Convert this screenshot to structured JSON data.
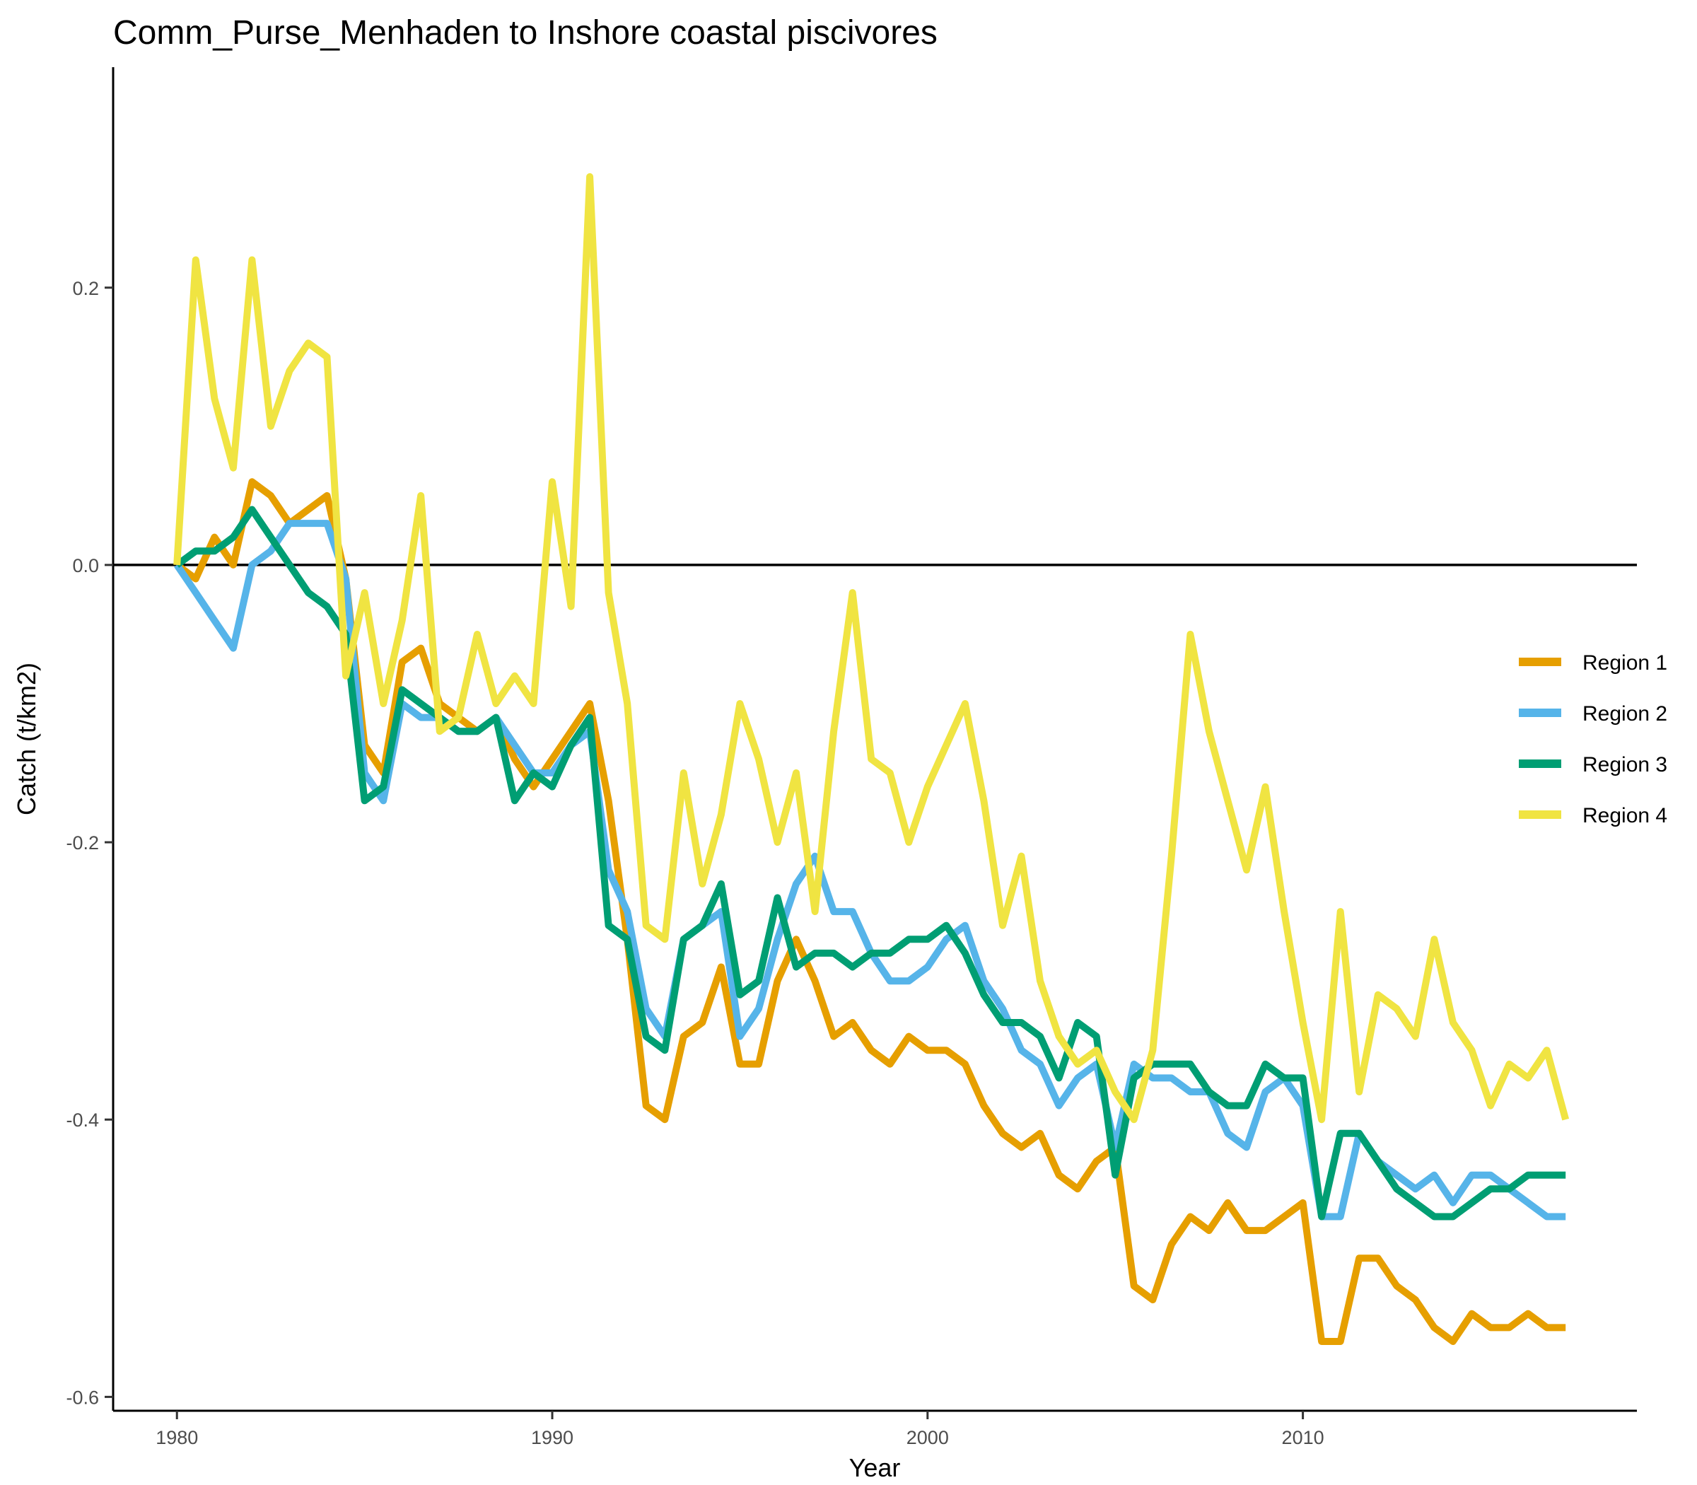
{
  "chart_data": {
    "type": "line",
    "title": "Comm_Purse_Menhaden to Inshore coastal piscivores",
    "xlabel": "Year",
    "ylabel": "Catch (t/km2)",
    "xlim": [
      1978.3,
      2018.9
    ],
    "ylim": [
      -0.61,
      0.359
    ],
    "xticks": [
      1980,
      1990,
      2000,
      2010
    ],
    "xtick_labels": [
      "1980",
      "1990",
      "2000",
      "2010"
    ],
    "yticks": [
      -0.6,
      -0.4,
      -0.2,
      0.0,
      0.2
    ],
    "ytick_labels": [
      "-0.6",
      "-0.4",
      "-0.2",
      "0.0",
      "0.2"
    ],
    "reference_line_y": 0,
    "grid": false,
    "legend": "right",
    "x": [
      1980.0,
      1980.5,
      1981.0,
      1981.5,
      1982.0,
      1982.5,
      1983.0,
      1983.5,
      1984.0,
      1984.5,
      1985.0,
      1985.5,
      1986.0,
      1986.5,
      1987.0,
      1987.5,
      1988.0,
      1988.5,
      1989.0,
      1989.5,
      1990.0,
      1990.5,
      1991.0,
      1991.5,
      1992.0,
      1992.5,
      1993.0,
      1993.5,
      1994.0,
      1994.5,
      1995.0,
      1995.5,
      1996.0,
      1996.5,
      1997.0,
      1997.5,
      1998.0,
      1998.5,
      1999.0,
      1999.5,
      2000.0,
      2000.5,
      2001.0,
      2001.5,
      2002.0,
      2002.5,
      2003.0,
      2003.5,
      2004.0,
      2004.5,
      2005.0,
      2005.5,
      2006.0,
      2006.5,
      2007.0,
      2007.5,
      2008.0,
      2008.5,
      2009.0,
      2009.5,
      2010.0,
      2010.5,
      2011.0,
      2011.5,
      2012.0,
      2012.5,
      2013.0,
      2013.5,
      2014.0,
      2014.5,
      2015.0,
      2015.5,
      2016.0,
      2016.5,
      2017.0
    ],
    "series": [
      {
        "name": "Region 1",
        "color": "#E69F00",
        "values": [
          0.0,
          -0.01,
          0.02,
          0.0,
          0.06,
          0.05,
          0.03,
          0.04,
          0.05,
          -0.01,
          -0.13,
          -0.15,
          -0.07,
          -0.06,
          -0.1,
          -0.11,
          -0.12,
          -0.11,
          -0.14,
          -0.16,
          -0.14,
          -0.12,
          -0.1,
          -0.17,
          -0.27,
          -0.39,
          -0.4,
          -0.34,
          -0.33,
          -0.29,
          -0.36,
          -0.36,
          -0.3,
          -0.27,
          -0.3,
          -0.34,
          -0.33,
          -0.35,
          -0.36,
          -0.34,
          -0.35,
          -0.35,
          -0.36,
          -0.39,
          -0.41,
          -0.42,
          -0.41,
          -0.44,
          -0.45,
          -0.43,
          -0.42,
          -0.52,
          -0.53,
          -0.49,
          -0.47,
          -0.48,
          -0.46,
          -0.48,
          -0.48,
          -0.47,
          -0.46,
          -0.56,
          -0.56,
          -0.5,
          -0.5,
          -0.52,
          -0.53,
          -0.55,
          -0.56,
          -0.54,
          -0.55,
          -0.55,
          -0.54,
          -0.55,
          -0.55
        ]
      },
      {
        "name": "Region 2",
        "color": "#56B4E9",
        "values": [
          0.0,
          -0.02,
          -0.04,
          -0.06,
          0.0,
          0.01,
          0.03,
          0.03,
          0.03,
          -0.01,
          -0.15,
          -0.17,
          -0.1,
          -0.11,
          -0.11,
          -0.12,
          -0.12,
          -0.11,
          -0.13,
          -0.15,
          -0.15,
          -0.13,
          -0.12,
          -0.22,
          -0.25,
          -0.32,
          -0.34,
          -0.27,
          -0.26,
          -0.25,
          -0.34,
          -0.32,
          -0.27,
          -0.23,
          -0.21,
          -0.25,
          -0.25,
          -0.28,
          -0.3,
          -0.3,
          -0.29,
          -0.27,
          -0.26,
          -0.3,
          -0.32,
          -0.35,
          -0.36,
          -0.39,
          -0.37,
          -0.36,
          -0.42,
          -0.36,
          -0.37,
          -0.37,
          -0.38,
          -0.38,
          -0.41,
          -0.42,
          -0.38,
          -0.37,
          -0.39,
          -0.47,
          -0.47,
          -0.41,
          -0.43,
          -0.44,
          -0.45,
          -0.44,
          -0.46,
          -0.44,
          -0.44,
          -0.45,
          -0.46,
          -0.47,
          -0.47
        ]
      },
      {
        "name": "Region 3",
        "color": "#009E73",
        "values": [
          0.0,
          0.01,
          0.01,
          0.02,
          0.04,
          0.02,
          0.0,
          -0.02,
          -0.03,
          -0.05,
          -0.17,
          -0.16,
          -0.09,
          -0.1,
          -0.11,
          -0.12,
          -0.12,
          -0.11,
          -0.17,
          -0.15,
          -0.16,
          -0.13,
          -0.11,
          -0.26,
          -0.27,
          -0.34,
          -0.35,
          -0.27,
          -0.26,
          -0.23,
          -0.31,
          -0.3,
          -0.24,
          -0.29,
          -0.28,
          -0.28,
          -0.29,
          -0.28,
          -0.28,
          -0.27,
          -0.27,
          -0.26,
          -0.28,
          -0.31,
          -0.33,
          -0.33,
          -0.34,
          -0.37,
          -0.33,
          -0.34,
          -0.44,
          -0.37,
          -0.36,
          -0.36,
          -0.36,
          -0.38,
          -0.39,
          -0.39,
          -0.36,
          -0.37,
          -0.37,
          -0.47,
          -0.41,
          -0.41,
          -0.43,
          -0.45,
          -0.46,
          -0.47,
          -0.47,
          -0.46,
          -0.45,
          -0.45,
          -0.44,
          -0.44,
          -0.44
        ]
      },
      {
        "name": "Region 4",
        "color": "#F0E442",
        "values": [
          0.0,
          0.22,
          0.12,
          0.07,
          0.22,
          0.1,
          0.14,
          0.16,
          0.15,
          -0.08,
          -0.02,
          -0.1,
          -0.04,
          0.05,
          -0.12,
          -0.11,
          -0.05,
          -0.1,
          -0.08,
          -0.1,
          0.06,
          -0.03,
          0.28,
          -0.02,
          -0.1,
          -0.26,
          -0.27,
          -0.15,
          -0.23,
          -0.18,
          -0.1,
          -0.14,
          -0.2,
          -0.15,
          -0.25,
          -0.12,
          -0.02,
          -0.14,
          -0.15,
          -0.2,
          -0.16,
          -0.13,
          -0.1,
          -0.17,
          -0.26,
          -0.21,
          -0.3,
          -0.34,
          -0.36,
          -0.35,
          -0.38,
          -0.4,
          -0.35,
          -0.21,
          -0.05,
          -0.12,
          -0.17,
          -0.22,
          -0.16,
          -0.25,
          -0.33,
          -0.4,
          -0.25,
          -0.38,
          -0.31,
          -0.32,
          -0.34,
          -0.27,
          -0.33,
          -0.35,
          -0.39,
          -0.36,
          -0.37,
          -0.35,
          -0.4
        ]
      }
    ]
  }
}
